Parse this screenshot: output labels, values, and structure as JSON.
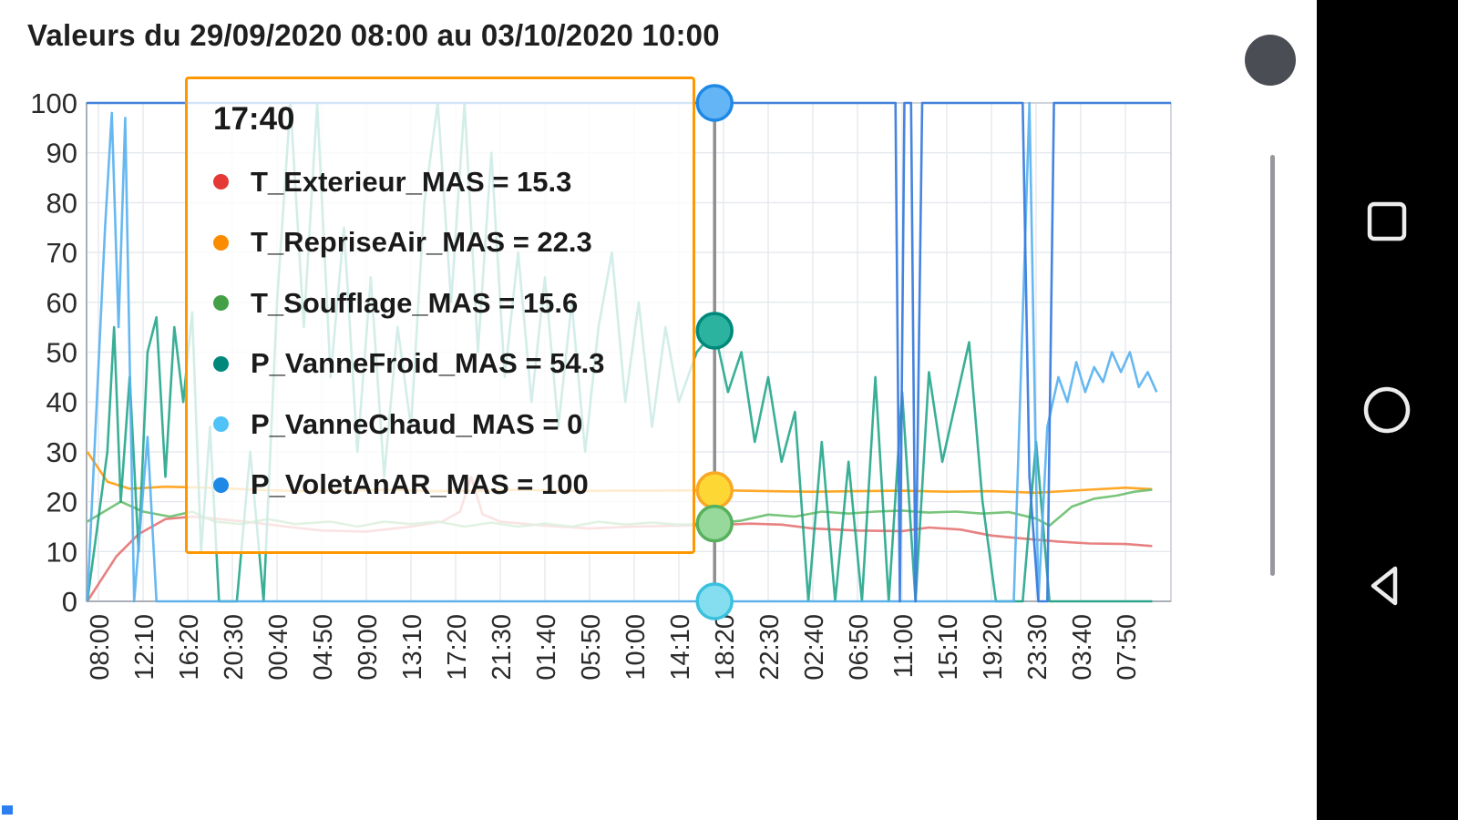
{
  "title": "Valeurs du 29/09/2020 08:00 au 03/10/2020 10:00",
  "chart_data": {
    "type": "line",
    "title": "Valeurs du 29/09/2020 08:00 au 03/10/2020 10:00",
    "xlabel": "",
    "ylabel": "",
    "ylim": [
      0,
      100
    ],
    "yticks": [
      0,
      10,
      20,
      30,
      40,
      50,
      60,
      70,
      80,
      90,
      100
    ],
    "grid": true,
    "x_tick_labels": [
      "08:00",
      "12:10",
      "16:20",
      "20:30",
      "00:40",
      "04:50",
      "09:00",
      "13:10",
      "17:20",
      "21:30",
      "01:40",
      "05:50",
      "10:00",
      "14:10",
      "18:20",
      "22:30",
      "02:40",
      "06:50",
      "11:00",
      "15:10",
      "19:20",
      "23:30",
      "03:40",
      "07:50"
    ],
    "series": [
      {
        "name": "T_Exterieur_MAS",
        "color": "#e57373",
        "opacity": 0.9,
        "points": [
          [
            -0.25,
            0
          ],
          [
            0.4,
            9
          ],
          [
            0.9,
            13.5
          ],
          [
            1.5,
            16.5
          ],
          [
            2.1,
            17
          ],
          [
            2.7,
            16.5
          ],
          [
            3.3,
            16
          ],
          [
            4.2,
            15
          ],
          [
            5,
            14.2
          ],
          [
            6,
            14
          ],
          [
            7,
            15
          ],
          [
            7.7,
            16
          ],
          [
            8.1,
            18
          ],
          [
            8.35,
            25
          ],
          [
            8.6,
            17.5
          ],
          [
            9,
            16
          ],
          [
            10,
            15.2
          ],
          [
            11,
            14.6
          ],
          [
            12,
            15
          ],
          [
            13,
            15.2
          ],
          [
            13.8,
            15.3
          ],
          [
            14.6,
            15.6
          ],
          [
            15.3,
            15.4
          ],
          [
            16,
            14.6
          ],
          [
            17,
            14.2
          ],
          [
            18,
            14.1
          ],
          [
            18.6,
            14.8
          ],
          [
            19.3,
            14.4
          ],
          [
            20,
            13.2
          ],
          [
            20.7,
            12.6
          ],
          [
            21.5,
            12
          ],
          [
            22.2,
            11.6
          ],
          [
            23,
            11.5
          ],
          [
            23.6,
            11.1
          ]
        ]
      },
      {
        "name": "T_RepriseAir_MAS",
        "color": "#ffa726",
        "opacity": 1,
        "points": [
          [
            -0.25,
            30
          ],
          [
            0.2,
            24
          ],
          [
            0.7,
            22.6
          ],
          [
            1.5,
            23
          ],
          [
            2.5,
            22.8
          ],
          [
            3.5,
            22.4
          ],
          [
            4.5,
            22.1
          ],
          [
            5.5,
            22.2
          ],
          [
            6.5,
            22.4
          ],
          [
            7.5,
            22.1
          ],
          [
            8.5,
            22.2
          ],
          [
            9.5,
            22.4
          ],
          [
            10.5,
            22.1
          ],
          [
            11.5,
            22.2
          ],
          [
            12.5,
            22.2
          ],
          [
            13.8,
            22.3
          ],
          [
            15,
            22.1
          ],
          [
            16,
            22
          ],
          [
            17,
            22.1
          ],
          [
            18,
            22.2
          ],
          [
            19,
            22
          ],
          [
            20,
            22.1
          ],
          [
            21,
            21.8
          ],
          [
            22,
            22.3
          ],
          [
            23,
            22.8
          ],
          [
            23.6,
            22.5
          ]
        ]
      },
      {
        "name": "T_Soufflage_MAS",
        "color": "#6abf6e",
        "opacity": 0.9,
        "points": [
          [
            -0.25,
            16
          ],
          [
            0.5,
            20
          ],
          [
            1,
            18
          ],
          [
            1.6,
            17
          ],
          [
            2.1,
            18
          ],
          [
            2.6,
            16
          ],
          [
            3.2,
            15.5
          ],
          [
            3.8,
            16.5
          ],
          [
            4.4,
            15.5
          ],
          [
            5.2,
            16
          ],
          [
            5.8,
            15
          ],
          [
            6.4,
            16
          ],
          [
            7,
            15.5
          ],
          [
            7.6,
            16
          ],
          [
            8.2,
            15
          ],
          [
            8.8,
            15.8
          ],
          [
            9.4,
            15
          ],
          [
            10,
            15.6
          ],
          [
            10.6,
            15
          ],
          [
            11.2,
            16
          ],
          [
            11.8,
            15.4
          ],
          [
            12.4,
            15.8
          ],
          [
            13,
            15.4
          ],
          [
            13.8,
            15.6
          ],
          [
            14.4,
            16.2
          ],
          [
            15,
            17.4
          ],
          [
            15.6,
            17
          ],
          [
            16.2,
            18
          ],
          [
            16.8,
            17.6
          ],
          [
            17.4,
            18
          ],
          [
            18,
            18.2
          ],
          [
            18.6,
            17.8
          ],
          [
            19.2,
            18
          ],
          [
            19.8,
            17.6
          ],
          [
            20.4,
            17.9
          ],
          [
            21,
            16.6
          ],
          [
            21.3,
            15.2
          ],
          [
            21.8,
            19
          ],
          [
            22.3,
            20.6
          ],
          [
            22.8,
            21.2
          ],
          [
            23.2,
            22
          ],
          [
            23.6,
            22.4
          ]
        ]
      },
      {
        "name": "P_VanneFroid_MAS",
        "color": "#17a184",
        "opacity": 0.85,
        "points": [
          [
            -0.25,
            0
          ],
          [
            0.2,
            30
          ],
          [
            0.35,
            55
          ],
          [
            0.5,
            20
          ],
          [
            0.7,
            45
          ],
          [
            0.9,
            10
          ],
          [
            1.1,
            50
          ],
          [
            1.3,
            57
          ],
          [
            1.5,
            25
          ],
          [
            1.7,
            55
          ],
          [
            1.9,
            40
          ],
          [
            2.1,
            58
          ],
          [
            2.3,
            10
          ],
          [
            2.5,
            35
          ],
          [
            2.7,
            0
          ],
          [
            3.1,
            0
          ],
          [
            3.4,
            30
          ],
          [
            3.7,
            0
          ],
          [
            4,
            60
          ],
          [
            4.3,
            100
          ],
          [
            4.6,
            55
          ],
          [
            4.9,
            100
          ],
          [
            5.2,
            45
          ],
          [
            5.5,
            75
          ],
          [
            5.8,
            30
          ],
          [
            6.1,
            65
          ],
          [
            6.4,
            25
          ],
          [
            6.7,
            55
          ],
          [
            7,
            35
          ],
          [
            7.3,
            80
          ],
          [
            7.6,
            100
          ],
          [
            7.9,
            60
          ],
          [
            8.2,
            100
          ],
          [
            8.5,
            50
          ],
          [
            8.8,
            90
          ],
          [
            9.1,
            45
          ],
          [
            9.4,
            70
          ],
          [
            9.7,
            40
          ],
          [
            10,
            65
          ],
          [
            10.3,
            35
          ],
          [
            10.6,
            60
          ],
          [
            10.9,
            30
          ],
          [
            11.2,
            55
          ],
          [
            11.5,
            70
          ],
          [
            11.8,
            40
          ],
          [
            12.1,
            60
          ],
          [
            12.4,
            35
          ],
          [
            12.7,
            55
          ],
          [
            13,
            40
          ],
          [
            13.4,
            50
          ],
          [
            13.8,
            54.3
          ],
          [
            14.1,
            42
          ],
          [
            14.4,
            50
          ],
          [
            14.7,
            32
          ],
          [
            15,
            45
          ],
          [
            15.3,
            28
          ],
          [
            15.6,
            38
          ],
          [
            15.9,
            0
          ],
          [
            16.2,
            32
          ],
          [
            16.5,
            0
          ],
          [
            16.8,
            28
          ],
          [
            17.1,
            0
          ],
          [
            17.4,
            45
          ],
          [
            17.7,
            0
          ],
          [
            18,
            42
          ],
          [
            18.3,
            0
          ],
          [
            18.6,
            46
          ],
          [
            18.9,
            28
          ],
          [
            19.2,
            40
          ],
          [
            19.5,
            52
          ],
          [
            19.8,
            20
          ],
          [
            20.1,
            0
          ],
          [
            20.7,
            0
          ],
          [
            21,
            32
          ],
          [
            21.3,
            0
          ],
          [
            21.9,
            0
          ],
          [
            22.6,
            0
          ],
          [
            23.6,
            0
          ]
        ]
      },
      {
        "name": "P_VanneChaud_MAS",
        "color": "#56b0f0",
        "opacity": 0.9,
        "points": [
          [
            -0.25,
            0
          ],
          [
            0.15,
            75
          ],
          [
            0.3,
            98
          ],
          [
            0.45,
            55
          ],
          [
            0.6,
            97
          ],
          [
            0.8,
            0
          ],
          [
            1.1,
            33
          ],
          [
            1.3,
            0
          ],
          [
            2.5,
            0
          ],
          [
            5,
            0
          ],
          [
            8,
            0
          ],
          [
            11,
            0
          ],
          [
            13.8,
            0
          ],
          [
            16,
            0
          ],
          [
            18.5,
            0
          ],
          [
            20.5,
            0
          ],
          [
            20.85,
            100
          ],
          [
            21.05,
            0
          ],
          [
            21.25,
            35
          ],
          [
            21.5,
            45
          ],
          [
            21.7,
            40
          ],
          [
            21.9,
            48
          ],
          [
            22.1,
            42
          ],
          [
            22.3,
            47
          ],
          [
            22.5,
            44
          ],
          [
            22.7,
            50
          ],
          [
            22.9,
            46
          ],
          [
            23.1,
            50
          ],
          [
            23.3,
            43
          ],
          [
            23.5,
            46
          ],
          [
            23.7,
            42
          ]
        ]
      },
      {
        "name": "P_VoletAnAR_MAS",
        "color": "#3b7ddd",
        "opacity": 0.95,
        "points": [
          [
            -0.27,
            100
          ],
          [
            17.85,
            100
          ],
          [
            17.95,
            0
          ],
          [
            18.05,
            100
          ],
          [
            18.2,
            100
          ],
          [
            18.3,
            0
          ],
          [
            18.45,
            100
          ],
          [
            20.7,
            100
          ],
          [
            20.85,
            25
          ],
          [
            21.05,
            0
          ],
          [
            21.25,
            0
          ],
          [
            21.4,
            100
          ],
          [
            24.02,
            100
          ]
        ]
      }
    ],
    "cursor": {
      "tick": 13.8,
      "time": "17:40",
      "markers": [
        {
          "series": "P_VoletAnAR_MAS",
          "value": 100,
          "fill": "#64b5f6",
          "stroke": "#1e88e5"
        },
        {
          "series": "P_VanneFroid_MAS",
          "value": 54.3,
          "fill": "#2bb3a0",
          "stroke": "#00897b"
        },
        {
          "series": "T_RepriseAir_MAS",
          "value": 22.3,
          "fill": "#fdd835",
          "stroke": "#f9a825"
        },
        {
          "series": "T_Soufflage_MAS",
          "value": 15.6,
          "fill": "#97d89b",
          "stroke": "#57b15c"
        },
        {
          "series": "P_VanneChaud_MAS",
          "value": 0,
          "fill": "#84def0",
          "stroke": "#39c1dd"
        }
      ]
    },
    "tooltip": {
      "time": "17:40",
      "entries": [
        {
          "label": "T_Exterieur_MAS",
          "value": "15.3",
          "color": "#e53935"
        },
        {
          "label": "T_RepriseAir_MAS",
          "value": "22.3",
          "color": "#fb8c00"
        },
        {
          "label": "T_Soufflage_MAS",
          "value": "15.6",
          "color": "#43a047"
        },
        {
          "label": "P_VanneFroid_MAS",
          "value": "54.3",
          "color": "#00897b"
        },
        {
          "label": "P_VanneChaud_MAS",
          "value": "0",
          "color": "#4fc3f7"
        },
        {
          "label": "P_VoletAnAR_MAS",
          "value": "100",
          "color": "#1e88e5"
        }
      ]
    },
    "legend_position": "tooltip-only"
  },
  "android_nav": {
    "recents_label": "recents",
    "home_label": "home",
    "back_label": "back"
  }
}
